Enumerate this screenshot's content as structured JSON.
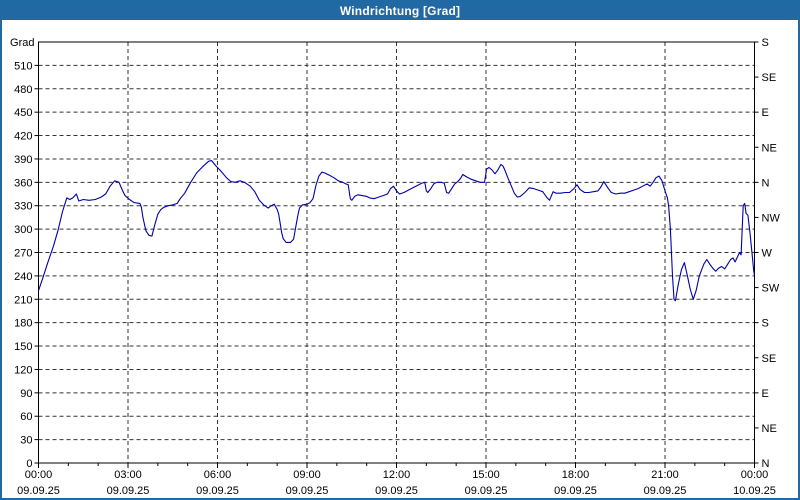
{
  "window": {
    "title": "Windrichtung [Grad]"
  },
  "colors": {
    "frame": "#1F69A5",
    "titlebar_bg": "#2269A4",
    "titlebar_text": "#FFFFFF",
    "plot_border": "#000000",
    "grid": "#333333",
    "tick_text": "#000000",
    "series_line": "#0000AA",
    "background": "#FFFFFF"
  },
  "chart_data": {
    "type": "line",
    "title": "Windrichtung [Grad]",
    "y_left_title": "Grad",
    "y_left_unit": "Grad",
    "ylim": [
      0,
      540
    ],
    "y_left_tick_step": 30,
    "y_left_ticks": [
      0,
      30,
      60,
      90,
      120,
      150,
      180,
      210,
      240,
      270,
      300,
      330,
      360,
      390,
      420,
      450,
      480,
      510
    ],
    "y_right_ticks": [
      {
        "deg": 540,
        "label": "S"
      },
      {
        "deg": 495,
        "label": "SE"
      },
      {
        "deg": 450,
        "label": "E"
      },
      {
        "deg": 405,
        "label": "NE"
      },
      {
        "deg": 360,
        "label": "N"
      },
      {
        "deg": 315,
        "label": "NW"
      },
      {
        "deg": 270,
        "label": "W"
      },
      {
        "deg": 225,
        "label": "SW"
      },
      {
        "deg": 180,
        "label": "S"
      },
      {
        "deg": 135,
        "label": "SE"
      },
      {
        "deg": 90,
        "label": "E"
      },
      {
        "deg": 45,
        "label": "NE"
      },
      {
        "deg": 0,
        "label": "N"
      }
    ],
    "xlim_hours": [
      0,
      24
    ],
    "x_minor_tick_hours": 1,
    "x_ticks": [
      {
        "hour": 0,
        "time": "00:00",
        "date": "09.09.25"
      },
      {
        "hour": 3,
        "time": "03:00",
        "date": "09.09.25"
      },
      {
        "hour": 6,
        "time": "06:00",
        "date": "09.09.25"
      },
      {
        "hour": 9,
        "time": "09:00",
        "date": "09.09.25"
      },
      {
        "hour": 12,
        "time": "12:00",
        "date": "09.09.25"
      },
      {
        "hour": 15,
        "time": "15:00",
        "date": "09.09.25"
      },
      {
        "hour": 18,
        "time": "18:00",
        "date": "09.09.25"
      },
      {
        "hour": 21,
        "time": "21:00",
        "date": "09.09.25"
      },
      {
        "hour": 24,
        "time": "00:00",
        "date": "10.09.25"
      }
    ],
    "grid": "dashed",
    "legend": "none",
    "series": [
      {
        "name": "Windrichtung",
        "color": "#0000AA",
        "points": [
          [
            0,
            221
          ],
          [
            0.15,
            238
          ],
          [
            0.3,
            256
          ],
          [
            0.5,
            278
          ],
          [
            0.65,
            298
          ],
          [
            0.8,
            322
          ],
          [
            0.95,
            340
          ],
          [
            1.05,
            338
          ],
          [
            1.15,
            340
          ],
          [
            1.27,
            345
          ],
          [
            1.35,
            336
          ],
          [
            1.5,
            338
          ],
          [
            1.7,
            337
          ],
          [
            1.9,
            338
          ],
          [
            2.1,
            341
          ],
          [
            2.25,
            345
          ],
          [
            2.4,
            355
          ],
          [
            2.55,
            362
          ],
          [
            2.7,
            360
          ],
          [
            2.8,
            351
          ],
          [
            2.9,
            343
          ],
          [
            3.05,
            338
          ],
          [
            3.2,
            334
          ],
          [
            3.4,
            333
          ],
          [
            3.45,
            328
          ],
          [
            3.5,
            315
          ],
          [
            3.6,
            298
          ],
          [
            3.7,
            292
          ],
          [
            3.8,
            291
          ],
          [
            3.9,
            306
          ],
          [
            4.0,
            319
          ],
          [
            4.1,
            325
          ],
          [
            4.2,
            328
          ],
          [
            4.35,
            330
          ],
          [
            4.5,
            331
          ],
          [
            4.65,
            333
          ],
          [
            4.75,
            339
          ],
          [
            4.9,
            346
          ],
          [
            5.1,
            360
          ],
          [
            5.3,
            372
          ],
          [
            5.5,
            380
          ],
          [
            5.7,
            387
          ],
          [
            5.8,
            388
          ],
          [
            5.95,
            381
          ],
          [
            6.1,
            375
          ],
          [
            6.3,
            366
          ],
          [
            6.45,
            361
          ],
          [
            6.6,
            360
          ],
          [
            6.75,
            362
          ],
          [
            6.9,
            360
          ],
          [
            7.1,
            355
          ],
          [
            7.25,
            348
          ],
          [
            7.4,
            337
          ],
          [
            7.55,
            331
          ],
          [
            7.7,
            327
          ],
          [
            7.8,
            330
          ],
          [
            7.9,
            332
          ],
          [
            8.0,
            325
          ],
          [
            8.05,
            319
          ],
          [
            8.1,
            308
          ],
          [
            8.15,
            296
          ],
          [
            8.2,
            288
          ],
          [
            8.3,
            283
          ],
          [
            8.45,
            283
          ],
          [
            8.55,
            287
          ],
          [
            8.6,
            298
          ],
          [
            8.65,
            309
          ],
          [
            8.7,
            319
          ],
          [
            8.75,
            327
          ],
          [
            8.85,
            331
          ],
          [
            9.0,
            332
          ],
          [
            9.1,
            334
          ],
          [
            9.2,
            339
          ],
          [
            9.3,
            356
          ],
          [
            9.4,
            368
          ],
          [
            9.5,
            373
          ],
          [
            9.6,
            372
          ],
          [
            9.75,
            369
          ],
          [
            9.9,
            366
          ],
          [
            10.05,
            362
          ],
          [
            10.2,
            360
          ],
          [
            10.3,
            358
          ],
          [
            10.38,
            357
          ],
          [
            10.45,
            339
          ],
          [
            10.5,
            337
          ],
          [
            10.6,
            342
          ],
          [
            10.7,
            344
          ],
          [
            10.85,
            343
          ],
          [
            11.0,
            342
          ],
          [
            11.1,
            340
          ],
          [
            11.25,
            339
          ],
          [
            11.4,
            341
          ],
          [
            11.55,
            343
          ],
          [
            11.7,
            345
          ],
          [
            11.8,
            352
          ],
          [
            11.9,
            355
          ],
          [
            12.0,
            349
          ],
          [
            12.1,
            345
          ],
          [
            12.25,
            347
          ],
          [
            12.4,
            350
          ],
          [
            12.55,
            353
          ],
          [
            12.7,
            356
          ],
          [
            12.85,
            359
          ],
          [
            12.95,
            360
          ],
          [
            13.0,
            349
          ],
          [
            13.05,
            347
          ],
          [
            13.15,
            352
          ],
          [
            13.25,
            358
          ],
          [
            13.35,
            360
          ],
          [
            13.5,
            360
          ],
          [
            13.6,
            359
          ],
          [
            13.68,
            347
          ],
          [
            13.75,
            346
          ],
          [
            13.85,
            352
          ],
          [
            13.95,
            358
          ],
          [
            14.05,
            361
          ],
          [
            14.15,
            365
          ],
          [
            14.22,
            370
          ],
          [
            14.35,
            367
          ],
          [
            14.5,
            364
          ],
          [
            14.65,
            362
          ],
          [
            14.8,
            360
          ],
          [
            14.95,
            360
          ],
          [
            15.02,
            377
          ],
          [
            15.1,
            379
          ],
          [
            15.2,
            376
          ],
          [
            15.3,
            371
          ],
          [
            15.4,
            376
          ],
          [
            15.5,
            383
          ],
          [
            15.57,
            381
          ],
          [
            15.65,
            374
          ],
          [
            15.75,
            364
          ],
          [
            15.85,
            355
          ],
          [
            15.95,
            346
          ],
          [
            16.05,
            341
          ],
          [
            16.15,
            342
          ],
          [
            16.3,
            347
          ],
          [
            16.45,
            353
          ],
          [
            16.6,
            352
          ],
          [
            16.75,
            350
          ],
          [
            16.9,
            348
          ],
          [
            17.05,
            340
          ],
          [
            17.13,
            337
          ],
          [
            17.25,
            348
          ],
          [
            17.35,
            346
          ],
          [
            17.5,
            346
          ],
          [
            17.65,
            347
          ],
          [
            17.8,
            347
          ],
          [
            17.95,
            352
          ],
          [
            18.05,
            357
          ],
          [
            18.15,
            351
          ],
          [
            18.3,
            347
          ],
          [
            18.45,
            347
          ],
          [
            18.6,
            348
          ],
          [
            18.75,
            349
          ],
          [
            18.85,
            354
          ],
          [
            18.95,
            361
          ],
          [
            19.1,
            352
          ],
          [
            19.2,
            347
          ],
          [
            19.35,
            345
          ],
          [
            19.5,
            346
          ],
          [
            19.65,
            346
          ],
          [
            19.8,
            348
          ],
          [
            19.95,
            350
          ],
          [
            20.1,
            352
          ],
          [
            20.25,
            355
          ],
          [
            20.4,
            358
          ],
          [
            20.5,
            355
          ],
          [
            20.6,
            360
          ],
          [
            20.7,
            366
          ],
          [
            20.8,
            368
          ],
          [
            20.9,
            362
          ],
          [
            21.0,
            349
          ],
          [
            21.08,
            340
          ],
          [
            21.12,
            330
          ],
          [
            21.18,
            300
          ],
          [
            21.25,
            240
          ],
          [
            21.3,
            210
          ],
          [
            21.35,
            208
          ],
          [
            21.45,
            230
          ],
          [
            21.55,
            248
          ],
          [
            21.65,
            257
          ],
          [
            21.75,
            240
          ],
          [
            21.85,
            222
          ],
          [
            21.95,
            210
          ],
          [
            22.05,
            222
          ],
          [
            22.15,
            240
          ],
          [
            22.3,
            255
          ],
          [
            22.4,
            261
          ],
          [
            22.5,
            255
          ],
          [
            22.6,
            250
          ],
          [
            22.7,
            246
          ],
          [
            22.8,
            250
          ],
          [
            22.9,
            252
          ],
          [
            23.0,
            249
          ],
          [
            23.1,
            255
          ],
          [
            23.2,
            261
          ],
          [
            23.28,
            263
          ],
          [
            23.35,
            258
          ],
          [
            23.45,
            266
          ],
          [
            23.5,
            270
          ],
          [
            23.55,
            267
          ],
          [
            23.62,
            330
          ],
          [
            23.67,
            333
          ],
          [
            23.72,
            320
          ],
          [
            23.78,
            318
          ],
          [
            23.85,
            295
          ],
          [
            23.92,
            268
          ],
          [
            23.97,
            248
          ],
          [
            24,
            240
          ]
        ]
      }
    ]
  }
}
